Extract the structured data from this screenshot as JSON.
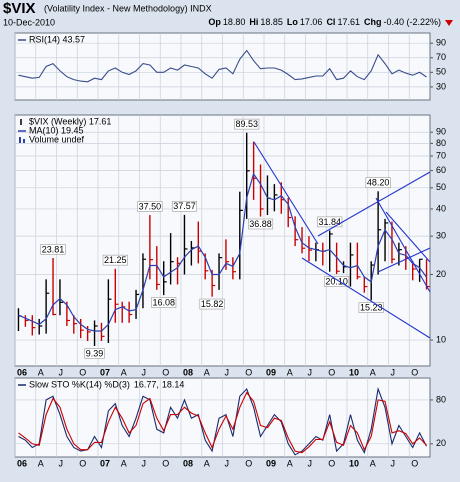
{
  "header": {
    "symbol": "$VIX",
    "name": "(Volatility Index - New Methodology) INDX",
    "date": "10-Dec-2010",
    "quote": [
      {
        "k": "Op",
        "v": "18.80"
      },
      {
        "k": "Hi",
        "v": "18.85"
      },
      {
        "k": "Lo",
        "v": "17.06"
      },
      {
        "k": "Cl",
        "v": "17.61"
      },
      {
        "k": "Chg",
        "v": "-0.40 (-2.22%)"
      }
    ]
  },
  "chart_data": [
    {
      "type": "line",
      "title": "RSI(14) 43.57",
      "x": [
        "2006-01",
        "2006-02",
        "2006-03",
        "2006-04",
        "2006-05",
        "2006-06",
        "2006-07",
        "2006-08",
        "2006-09",
        "2006-10",
        "2006-11",
        "2006-12",
        "2007-01",
        "2007-02",
        "2007-03",
        "2007-04",
        "2007-05",
        "2007-06",
        "2007-07",
        "2007-08",
        "2007-09",
        "2007-10",
        "2007-11",
        "2007-12",
        "2008-01",
        "2008-02",
        "2008-03",
        "2008-04",
        "2008-05",
        "2008-06",
        "2008-07",
        "2008-08",
        "2008-09",
        "2008-10",
        "2008-11",
        "2008-12",
        "2009-01",
        "2009-02",
        "2009-03",
        "2009-04",
        "2009-05",
        "2009-06",
        "2009-07",
        "2009-08",
        "2009-09",
        "2009-10",
        "2009-11",
        "2009-12",
        "2010-01",
        "2010-02",
        "2010-03",
        "2010-04",
        "2010-05",
        "2010-06",
        "2010-07",
        "2010-08",
        "2010-09",
        "2010-10",
        "2010-11",
        "2010-12"
      ],
      "series": [
        {
          "color": "#3a4d8a",
          "values": [
            46,
            44,
            42,
            43,
            58,
            62,
            52,
            44,
            40,
            38,
            37,
            42,
            40,
            52,
            56,
            50,
            47,
            52,
            62,
            60,
            50,
            50,
            56,
            53,
            60,
            58,
            56,
            48,
            42,
            54,
            56,
            48,
            68,
            80,
            66,
            55,
            56,
            56,
            53,
            47,
            40,
            41,
            43,
            45,
            45,
            55,
            40,
            42,
            52,
            44,
            40,
            52,
            74,
            62,
            48,
            53,
            49,
            46,
            50,
            43.57
          ]
        }
      ],
      "xlim": [
        "2006-01",
        "2011-01"
      ],
      "xticks": [
        "2006-01",
        "2006-04",
        "2006-07",
        "2006-10",
        "2007-01",
        "2007-04",
        "2007-07",
        "2007-10",
        "2008-01",
        "2008-04",
        "2008-07",
        "2008-10",
        "2009-01",
        "2009-04",
        "2009-07",
        "2009-10",
        "2010-01",
        "2010-04",
        "2010-07",
        "2010-10"
      ],
      "ylim": [
        12,
        104
      ],
      "yticks": [
        90,
        70,
        50,
        30
      ],
      "grid": true
    },
    {
      "type": "hlc",
      "log_y": true,
      "volume_label": "Volume undef",
      "x": [
        "2006-01",
        "2006-02",
        "2006-03",
        "2006-04",
        "2006-05",
        "2006-06",
        "2006-07",
        "2006-08",
        "2006-09",
        "2006-10",
        "2006-11",
        "2006-12",
        "2007-01",
        "2007-02",
        "2007-03",
        "2007-04",
        "2007-05",
        "2007-06",
        "2007-07",
        "2007-08",
        "2007-09",
        "2007-10",
        "2007-11",
        "2007-12",
        "2008-01",
        "2008-02",
        "2008-03",
        "2008-04",
        "2008-05",
        "2008-06",
        "2008-07",
        "2008-08",
        "2008-09",
        "2008-10",
        "2008-11",
        "2008-12",
        "2009-01",
        "2009-02",
        "2009-03",
        "2009-04",
        "2009-05",
        "2009-06",
        "2009-07",
        "2009-08",
        "2009-09",
        "2009-10",
        "2009-11",
        "2009-12",
        "2010-01",
        "2010-02",
        "2010-03",
        "2010-04",
        "2010-05",
        "2010-06",
        "2010-07",
        "2010-08",
        "2010-09",
        "2010-10",
        "2010-11",
        "2010-12"
      ],
      "series": [
        {
          "name": "$VIX (Weekly) 17.61",
          "color": "#000000",
          "down_color": "#cc0000",
          "high": [
            14.0,
            13.0,
            13.0,
            12.5,
            19.0,
            23.81,
            19.0,
            15.0,
            13.0,
            12.5,
            11.6,
            12.3,
            12.0,
            19.0,
            21.25,
            15.0,
            15.0,
            17.0,
            25.0,
            37.5,
            27.0,
            23.0,
            31.0,
            24.0,
            37.57,
            28.5,
            35.0,
            25.0,
            21.0,
            25.0,
            29.0,
            24.0,
            48.0,
            89.53,
            81.5,
            64.0,
            57.0,
            52.0,
            53.0,
            45.0,
            37.0,
            33.0,
            30.0,
            28.0,
            28.0,
            31.84,
            28.0,
            23.0,
            28.0,
            28.0,
            19.5,
            23.0,
            48.2,
            36.0,
            35.0,
            28.0,
            27.0,
            23.0,
            23.5,
            23.5
          ],
          "low": [
            11.0,
            11.5,
            10.5,
            10.6,
            10.7,
            13.0,
            13.0,
            11.6,
            10.7,
            10.2,
            9.9,
            9.39,
            9.9,
            9.7,
            12.0,
            12.0,
            12.0,
            12.5,
            14.0,
            19.0,
            17.0,
            16.08,
            18.0,
            18.0,
            20.0,
            22.0,
            22.5,
            19.0,
            15.82,
            17.0,
            21.0,
            19.0,
            19.0,
            36.0,
            44.0,
            36.88,
            37.5,
            39.0,
            38.0,
            33.0,
            27.0,
            25.0,
            23.0,
            23.0,
            22.0,
            20.6,
            20.1,
            20.3,
            17.6,
            19.0,
            16.5,
            15.23,
            20.0,
            23.0,
            22.5,
            22.0,
            21.0,
            18.8,
            18.5,
            17.06
          ],
          "close": [
            12.9,
            12.3,
            11.4,
            11.6,
            16.4,
            13.1,
            14.9,
            12.3,
            11.9,
            11.1,
            10.9,
            11.6,
            10.4,
            15.4,
            14.6,
            14.2,
            13.1,
            16.2,
            23.5,
            23.4,
            18.0,
            18.5,
            22.9,
            22.5,
            26.2,
            26.5,
            25.6,
            20.8,
            17.8,
            23.9,
            22.9,
            20.6,
            39.4,
            59.9,
            55.3,
            40.0,
            44.8,
            46.4,
            44.1,
            36.5,
            28.9,
            26.4,
            25.9,
            26.0,
            25.6,
            30.7,
            20.7,
            21.7,
            24.6,
            19.5,
            17.6,
            22.1,
            32.1,
            34.5,
            23.5,
            26.0,
            23.7,
            21.2,
            23.5,
            17.61
          ]
        },
        {
          "name": "MA(10) 19.45",
          "color": "#2e3fb0",
          "values": [
            13,
            12.6,
            12.2,
            11.8,
            12.5,
            14.5,
            15.5,
            14.5,
            12.8,
            11.8,
            11.2,
            11,
            11,
            11.8,
            13.8,
            14.2,
            13.6,
            13.8,
            17,
            22,
            22,
            19.5,
            20.5,
            21.5,
            24,
            26,
            27,
            24,
            20,
            20,
            22.5,
            21.8,
            25,
            45,
            58,
            52,
            45,
            44,
            46,
            42,
            33,
            28,
            26.5,
            26,
            25.5,
            26,
            24,
            22,
            21.5,
            22,
            19.5,
            18.5,
            27,
            32,
            29,
            25,
            24.5,
            22.5,
            21.5,
            19.45
          ]
        }
      ],
      "annotations": [
        {
          "x": "2006-06",
          "value": 23.81
        },
        {
          "x": "2006-12",
          "value": 9.39
        },
        {
          "x": "2007-03",
          "value": 21.25
        },
        {
          "x": "2007-08",
          "value": 37.5,
          "label": "37.50"
        },
        {
          "x": "2007-10",
          "value": 16.08
        },
        {
          "x": "2008-01",
          "value": 37.57
        },
        {
          "x": "2008-05",
          "value": 15.82
        },
        {
          "x": "2008-10",
          "value": 89.53
        },
        {
          "x": "2008-12",
          "value": 36.88
        },
        {
          "x": "2009-10",
          "value": 31.84
        },
        {
          "x": "2009-11",
          "value": 20.1,
          "label": "20.10"
        },
        {
          "x": "2010-04",
          "value": 15.23
        },
        {
          "x": "2010-05",
          "value": 48.2,
          "label": "48.20"
        }
      ],
      "xlim": [
        "2006-01",
        "2011-01"
      ],
      "xticks": [
        {
          "value": "2006-01",
          "label": "06"
        },
        {
          "value": "2006-04",
          "label": "A"
        },
        {
          "value": "2006-07",
          "label": "J"
        },
        {
          "value": "2006-10",
          "label": "O"
        },
        {
          "value": "2007-01",
          "label": "07"
        },
        {
          "value": "2007-04",
          "label": "A"
        },
        {
          "value": "2007-07",
          "label": "J"
        },
        {
          "value": "2007-10",
          "label": "O"
        },
        {
          "value": "2008-01",
          "label": "08"
        },
        {
          "value": "2008-04",
          "label": "A"
        },
        {
          "value": "2008-07",
          "label": "J"
        },
        {
          "value": "2008-10",
          "label": "O"
        },
        {
          "value": "2009-01",
          "label": "09"
        },
        {
          "value": "2009-04",
          "label": "A"
        },
        {
          "value": "2009-07",
          "label": "J"
        },
        {
          "value": "2009-10",
          "label": "O"
        },
        {
          "value": "2010-01",
          "label": "10"
        },
        {
          "value": "2010-04",
          "label": "A"
        },
        {
          "value": "2010-07",
          "label": "J"
        },
        {
          "value": "2010-10",
          "label": "O"
        }
      ],
      "ylim": [
        7.6,
        108
      ],
      "yticks": [
        90,
        80,
        70,
        60,
        50,
        40,
        30,
        20,
        10
      ],
      "grid": true
    },
    {
      "type": "line",
      "title": "Slow STO %K(14) %D(3)",
      "x": [
        "2006-01",
        "2006-02",
        "2006-03",
        "2006-04",
        "2006-05",
        "2006-06",
        "2006-07",
        "2006-08",
        "2006-09",
        "2006-10",
        "2006-11",
        "2006-12",
        "2007-01",
        "2007-02",
        "2007-03",
        "2007-04",
        "2007-05",
        "2007-06",
        "2007-07",
        "2007-08",
        "2007-09",
        "2007-10",
        "2007-11",
        "2007-12",
        "2008-01",
        "2008-02",
        "2008-03",
        "2008-04",
        "2008-05",
        "2008-06",
        "2008-07",
        "2008-08",
        "2008-09",
        "2008-10",
        "2008-11",
        "2008-12",
        "2009-01",
        "2009-02",
        "2009-03",
        "2009-04",
        "2009-05",
        "2009-06",
        "2009-07",
        "2009-08",
        "2009-09",
        "2009-10",
        "2009-11",
        "2009-12",
        "2010-01",
        "2010-02",
        "2010-03",
        "2010-04",
        "2010-05",
        "2010-06",
        "2010-07",
        "2010-08",
        "2010-09",
        "2010-10",
        "2010-11",
        "2010-12"
      ],
      "series": [
        {
          "name": "16.77,",
          "color": "#1a2a6c",
          "values": [
            30,
            25,
            15,
            20,
            80,
            85,
            60,
            30,
            15,
            10,
            12,
            30,
            15,
            65,
            75,
            45,
            30,
            55,
            85,
            80,
            40,
            35,
            70,
            55,
            80,
            55,
            60,
            25,
            10,
            55,
            60,
            30,
            85,
            95,
            70,
            30,
            45,
            60,
            50,
            20,
            5,
            10,
            20,
            30,
            25,
            60,
            10,
            20,
            60,
            25,
            8,
            40,
            95,
            70,
            20,
            45,
            30,
            15,
            35,
            16.77
          ]
        },
        {
          "name": "18.14",
          "color": "#cc0000",
          "values": [
            35,
            28,
            20,
            18,
            60,
            82,
            70,
            40,
            20,
            12,
            12,
            22,
            22,
            50,
            70,
            55,
            35,
            45,
            75,
            82,
            55,
            38,
            60,
            60,
            70,
            62,
            58,
            35,
            15,
            40,
            58,
            40,
            70,
            90,
            78,
            45,
            42,
            55,
            52,
            28,
            10,
            8,
            16,
            26,
            26,
            50,
            22,
            18,
            45,
            35,
            12,
            30,
            80,
            78,
            35,
            38,
            34,
            20,
            28,
            18.14
          ]
        }
      ],
      "xlim": [
        "2006-01",
        "2011-01"
      ],
      "xticks": [
        {
          "value": "2006-01",
          "label": "06"
        },
        {
          "value": "2006-04",
          "label": "A"
        },
        {
          "value": "2006-07",
          "label": "J"
        },
        {
          "value": "2006-10",
          "label": "O"
        },
        {
          "value": "2007-01",
          "label": "07"
        },
        {
          "value": "2007-04",
          "label": "A"
        },
        {
          "value": "2007-07",
          "label": "J"
        },
        {
          "value": "2007-10",
          "label": "O"
        },
        {
          "value": "2008-01",
          "label": "08"
        },
        {
          "value": "2008-04",
          "label": "A"
        },
        {
          "value": "2008-07",
          "label": "J"
        },
        {
          "value": "2008-10",
          "label": "O"
        },
        {
          "value": "2009-01",
          "label": "09"
        },
        {
          "value": "2009-04",
          "label": "A"
        },
        {
          "value": "2009-07",
          "label": "J"
        },
        {
          "value": "2009-10",
          "label": "O"
        },
        {
          "value": "2010-01",
          "label": "10"
        },
        {
          "value": "2010-04",
          "label": "A"
        },
        {
          "value": "2010-07",
          "label": "J"
        },
        {
          "value": "2010-10",
          "label": "O"
        }
      ],
      "ylim": [
        2,
        110
      ],
      "yticks": [
        80,
        20
      ],
      "grid": true
    }
  ]
}
